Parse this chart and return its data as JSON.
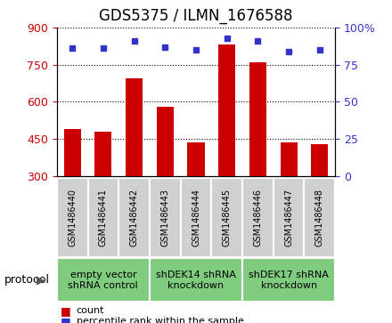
{
  "title": "GDS5375 / ILMN_1676588",
  "samples": [
    "GSM1486440",
    "GSM1486441",
    "GSM1486442",
    "GSM1486443",
    "GSM1486444",
    "GSM1486445",
    "GSM1486446",
    "GSM1486447",
    "GSM1486448"
  ],
  "counts": [
    490,
    478,
    693,
    580,
    437,
    830,
    760,
    437,
    428
  ],
  "percentiles": [
    86,
    86,
    91,
    87,
    85,
    93,
    91,
    84,
    85
  ],
  "ylim_left": [
    300,
    900
  ],
  "ylim_right": [
    0,
    100
  ],
  "yticks_left": [
    300,
    450,
    600,
    750,
    900
  ],
  "yticks_right": [
    0,
    25,
    50,
    75,
    100
  ],
  "bar_color": "#cc0000",
  "dot_color": "#3333cc",
  "protocol_groups": [
    {
      "label": "empty vector\nshRNA control",
      "start": 0,
      "end": 3
    },
    {
      "label": "shDEK14 shRNA\nknockdown",
      "start": 3,
      "end": 6
    },
    {
      "label": "shDEK17 shRNA\nknockdown",
      "start": 6,
      "end": 9
    }
  ],
  "legend_count_label": "count",
  "legend_pct_label": "percentile rank within the sample",
  "protocol_label": "protocol",
  "title_fontsize": 12,
  "tick_fontsize": 9,
  "sample_label_fontsize": 7,
  "protocol_fontsize": 8,
  "legend_fontsize": 8,
  "bar_width": 0.55,
  "sample_box_color": "#d0d0d0",
  "protocol_box_color": "#7fcc7f",
  "fig_bg": "#ffffff"
}
